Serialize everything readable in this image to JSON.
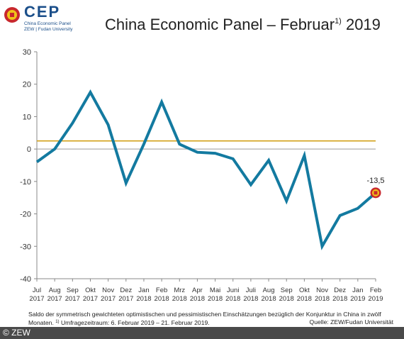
{
  "logo": {
    "name": "CEP",
    "sub_line1": "China Economic Panel",
    "sub_line2": "ZEW | Fudan University"
  },
  "title": {
    "text": "China Economic Panel – Februar",
    "footnote_mark": "1)",
    "year": " 2019"
  },
  "chart_data": {
    "type": "line",
    "x": [
      "Jul 2017",
      "Aug 2017",
      "Sep 2017",
      "Okt 2017",
      "Nov 2017",
      "Dez 2017",
      "Jan 2018",
      "Feb 2018",
      "Mrz 2018",
      "Apr 2018",
      "Mai 2018",
      "Juni 2018",
      "Juli 2018",
      "Aug 2018",
      "Sep 2018",
      "Okt 2018",
      "Nov 2018",
      "Dez 2018",
      "Jan 2019",
      "Feb 2019"
    ],
    "x_ticks": [
      {
        "month": "Jul",
        "year": "2017"
      },
      {
        "month": "Aug",
        "year": "2017"
      },
      {
        "month": "Sep",
        "year": "2017"
      },
      {
        "month": "Okt",
        "year": "2017"
      },
      {
        "month": "Nov",
        "year": "2017"
      },
      {
        "month": "Dez",
        "year": "2017"
      },
      {
        "month": "Jan",
        "year": "2018"
      },
      {
        "month": "Feb",
        "year": "2018"
      },
      {
        "month": "Mrz",
        "year": "2018"
      },
      {
        "month": "Apr",
        "year": "2018"
      },
      {
        "month": "Mai",
        "year": "2018"
      },
      {
        "month": "Juni",
        "year": "2018"
      },
      {
        "month": "Juli",
        "year": "2018"
      },
      {
        "month": "Aug",
        "year": "2018"
      },
      {
        "month": "Sep",
        "year": "2018"
      },
      {
        "month": "Okt",
        "year": "2018"
      },
      {
        "month": "Nov",
        "year": "2018"
      },
      {
        "month": "Dez",
        "year": "2018"
      },
      {
        "month": "Jan",
        "year": "2019"
      },
      {
        "month": "Feb",
        "year": "2019"
      }
    ],
    "series": [
      {
        "values": [
          -4,
          0,
          8,
          17.5,
          7.5,
          -10.5,
          1.5,
          14.5,
          1.5,
          -1,
          -1.3,
          -3,
          -11,
          -3.5,
          -16,
          -2,
          -30,
          -20.5,
          -18.3,
          -13.5
        ]
      }
    ],
    "reference_line": 2.5,
    "ylim": [
      -40,
      30
    ],
    "yticks": [
      30,
      20,
      10,
      0,
      -10,
      -20,
      -30,
      -40
    ],
    "annotation": "-13,5",
    "colors": {
      "line": "#137aa0",
      "reference": "#d2a11a",
      "zero": "#999999",
      "marker_outer": "#c8282d",
      "marker_inner": "#f0c419"
    }
  },
  "caption": {
    "line1": "Saldo der symmetrisch gewichteten optimistischen und pessimistischen Einschätzungen bezüglich der Konjunktur in China in zwölf",
    "line2_a": "Monaten. ",
    "footnote_mark": "1)",
    "line2_b": " Umfragezeitraum: 6. Februar 2019 – 21. Februar 2019.",
    "source": "Quelle: ZEW/Fudan Universität"
  },
  "footer": {
    "copyright": "© ZEW"
  }
}
